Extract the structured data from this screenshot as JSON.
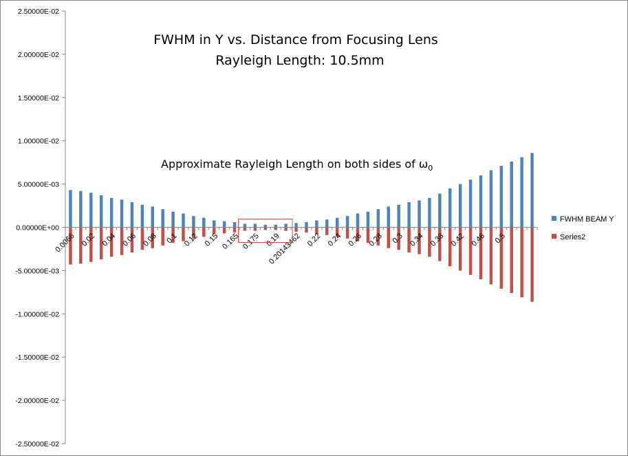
{
  "chart_data": {
    "type": "bar",
    "title": "FWHM in Y vs. Distance from Focusing Lens",
    "subtitle": "Rayleigh Length: 10.5mm",
    "annotation": "Approximate Rayleigh Length on both sides of ω",
    "annotation_subscript": "0",
    "xlabel": "",
    "ylabel": "",
    "ylim": [
      -0.025,
      0.025
    ],
    "yticks": [
      0.025,
      0.02,
      0.015,
      0.01,
      0.005,
      0,
      -0.005,
      -0.01,
      -0.015,
      -0.02,
      -0.025
    ],
    "ytick_labels": [
      "2.50000E-02",
      "2.00000E-02",
      "1.50000E-02",
      "1.00000E-02",
      "5.00000E-03",
      "0.00000E+00",
      "-5.00000E-03",
      "-1.00000E-02",
      "-1.50000E-02",
      "-2.00000E-02",
      "-2.50000E-02"
    ],
    "grid": false,
    "legend_position": "right",
    "category_labels_shown": [
      "0.0066",
      "0.02",
      "0.04",
      "0.06",
      "0.08",
      "0.1",
      "0.12",
      "0.15",
      "0.165",
      "0.175",
      "0.19",
      "0.20143462",
      "0.22",
      "0.24",
      "0.26",
      "0.28",
      "0.3",
      "0.34",
      "0.38",
      "0.42",
      "0.46",
      "0.5"
    ],
    "category_label_every": 2,
    "series": [
      {
        "name": "FWHM BEAM Y",
        "color": "#4f81bd",
        "values": [
          0.0043,
          0.0042,
          0.004,
          0.0037,
          0.0034,
          0.0032,
          0.0029,
          0.0026,
          0.0024,
          0.0021,
          0.0018,
          0.0016,
          0.0013,
          0.0011,
          0.0008,
          0.0007,
          0.0006,
          0.0004,
          0.0004,
          0.0003,
          0.0003,
          0.0004,
          0.0005,
          0.0006,
          0.0008,
          0.0009,
          0.0011,
          0.0013,
          0.0016,
          0.0018,
          0.0021,
          0.0024,
          0.0026,
          0.0029,
          0.0031,
          0.0034,
          0.0039,
          0.0045,
          0.005,
          0.0055,
          0.006,
          0.0066,
          0.0071,
          0.0076,
          0.0081,
          0.0086
        ]
      },
      {
        "name": "Series2",
        "color": "#c0504d",
        "values": [
          -0.0043,
          -0.0042,
          -0.004,
          -0.0037,
          -0.0034,
          -0.0032,
          -0.0029,
          -0.0026,
          -0.0024,
          -0.0021,
          -0.0018,
          -0.0016,
          -0.0013,
          -0.0011,
          -0.0008,
          -0.0007,
          -0.0006,
          -0.0004,
          -0.0004,
          -0.0003,
          -0.0003,
          -0.0004,
          -0.0005,
          -0.0006,
          -0.0008,
          -0.0009,
          -0.0011,
          -0.0013,
          -0.0016,
          -0.0018,
          -0.0021,
          -0.0024,
          -0.0026,
          -0.0029,
          -0.0031,
          -0.0034,
          -0.0039,
          -0.0045,
          -0.005,
          -0.0055,
          -0.006,
          -0.0066,
          -0.0071,
          -0.0076,
          -0.0081,
          -0.0086
        ]
      }
    ],
    "highlight_box": {
      "from_category_index": 17,
      "to_category_index": 21,
      "color": "#c0504d"
    }
  }
}
